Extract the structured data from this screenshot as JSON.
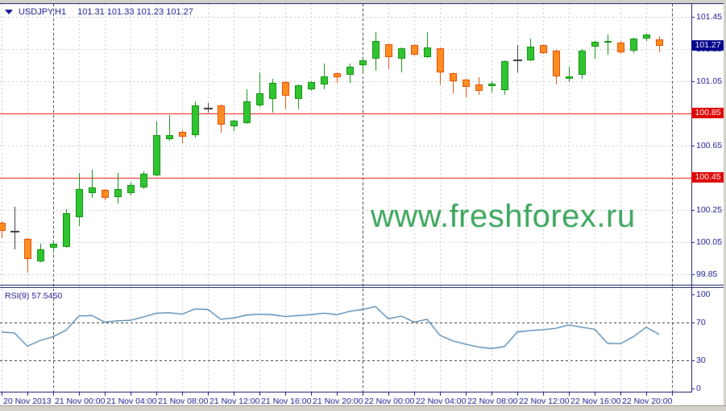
{
  "window": {
    "symbol": "USDJPY,H1",
    "ohlc": "101.31 101.33 101.23 101.27"
  },
  "watermark": "www.freshforex.ru",
  "colors": {
    "bull_fill": "#31c431",
    "bull_border": "#0a8f0a",
    "bear_fill": "#ff8c1e",
    "bear_border": "#e04a00",
    "doji": "#3a3a3a",
    "rsi_line": "#4a82ad",
    "hline": "#f51515",
    "badge_red": "#dd0404",
    "badge_blue": "#00008b",
    "axis_text": "#14148c",
    "grid": "#cccccc",
    "day_separator": "#404040"
  },
  "chart_data": {
    "type": "candlestick",
    "symbol": "USDJPY",
    "timeframe": "H1",
    "last_ohlc": {
      "open": 101.31,
      "high": 101.33,
      "low": 101.23,
      "close": 101.27
    },
    "price_axis": {
      "plain_labels": [
        101.45,
        101.25,
        101.05,
        100.65,
        100.25,
        100.05,
        99.85
      ],
      "grid_levels": [
        101.45,
        101.25,
        101.05,
        100.85,
        100.65,
        100.45,
        100.25,
        100.05,
        99.85
      ],
      "current_price_badge": "101.27",
      "current_price": 101.27
    },
    "hlines": [
      {
        "price": 100.85,
        "badge": "100.85"
      },
      {
        "price": 100.45,
        "badge": "100.45"
      }
    ],
    "time_axis": {
      "labels": [
        {
          "i": 0,
          "text": "20 Nov 2013"
        },
        {
          "i": 4,
          "text": "21 Nov 00:00"
        },
        {
          "i": 8,
          "text": "21 Nov 04:00"
        },
        {
          "i": 12,
          "text": "21 Nov 08:00"
        },
        {
          "i": 16,
          "text": "21 Nov 12:00"
        },
        {
          "i": 20,
          "text": "21 Nov 16:00"
        },
        {
          "i": 24,
          "text": "21 Nov 20:00"
        },
        {
          "i": 28,
          "text": "22 Nov 00:00"
        },
        {
          "i": 32,
          "text": "22 Nov 04:00"
        },
        {
          "i": 36,
          "text": "22 Nov 08:00"
        },
        {
          "i": 40,
          "text": "22 Nov 12:00"
        },
        {
          "i": 44,
          "text": "22 Nov 16:00"
        },
        {
          "i": 48,
          "text": "22 Nov 20:00"
        }
      ],
      "day_separator_indices": [
        4,
        28,
        52
      ]
    },
    "candles": [
      {
        "o": 100.17,
        "h": 100.18,
        "l": 100.075,
        "c": 100.12
      },
      {
        "o": 100.125,
        "h": 100.27,
        "l": 100.005,
        "c": 100.115,
        "dark": true
      },
      {
        "o": 100.07,
        "h": 100.075,
        "l": 99.86,
        "c": 99.945
      },
      {
        "o": 99.93,
        "h": 100.04,
        "l": 99.925,
        "c": 100.005
      },
      {
        "o": 100.015,
        "h": 100.045,
        "l": 99.99,
        "c": 100.04
      },
      {
        "o": 100.02,
        "h": 100.255,
        "l": 100.015,
        "c": 100.23
      },
      {
        "o": 100.205,
        "h": 100.48,
        "l": 100.15,
        "c": 100.38
      },
      {
        "o": 100.355,
        "h": 100.5,
        "l": 100.325,
        "c": 100.39
      },
      {
        "o": 100.375,
        "h": 100.38,
        "l": 100.31,
        "c": 100.325
      },
      {
        "o": 100.33,
        "h": 100.48,
        "l": 100.29,
        "c": 100.38
      },
      {
        "o": 100.355,
        "h": 100.42,
        "l": 100.34,
        "c": 100.405
      },
      {
        "o": 100.39,
        "h": 100.49,
        "l": 100.38,
        "c": 100.475
      },
      {
        "o": 100.465,
        "h": 100.8,
        "l": 100.46,
        "c": 100.715
      },
      {
        "o": 100.69,
        "h": 100.84,
        "l": 100.68,
        "c": 100.715
      },
      {
        "o": 100.735,
        "h": 100.745,
        "l": 100.665,
        "c": 100.705
      },
      {
        "o": 100.715,
        "h": 100.925,
        "l": 100.7,
        "c": 100.9
      },
      {
        "o": 100.89,
        "h": 100.915,
        "l": 100.855,
        "c": 100.88,
        "dark": true
      },
      {
        "o": 100.9,
        "h": 100.905,
        "l": 100.73,
        "c": 100.78
      },
      {
        "o": 100.77,
        "h": 100.81,
        "l": 100.74,
        "c": 100.805
      },
      {
        "o": 100.79,
        "h": 101.0,
        "l": 100.785,
        "c": 100.925
      },
      {
        "o": 100.9,
        "h": 101.105,
        "l": 100.89,
        "c": 100.975
      },
      {
        "o": 100.94,
        "h": 101.065,
        "l": 100.855,
        "c": 101.04
      },
      {
        "o": 101.045,
        "h": 101.05,
        "l": 100.88,
        "c": 100.96
      },
      {
        "o": 100.94,
        "h": 101.03,
        "l": 100.875,
        "c": 101.025
      },
      {
        "o": 101.0,
        "h": 101.05,
        "l": 100.99,
        "c": 101.045
      },
      {
        "o": 101.03,
        "h": 101.16,
        "l": 101.0,
        "c": 101.08
      },
      {
        "o": 101.1,
        "h": 101.105,
        "l": 101.04,
        "c": 101.075
      },
      {
        "o": 101.09,
        "h": 101.16,
        "l": 101.04,
        "c": 101.14
      },
      {
        "o": 101.15,
        "h": 101.19,
        "l": 101.1,
        "c": 101.18
      },
      {
        "o": 101.19,
        "h": 101.355,
        "l": 101.115,
        "c": 101.3
      },
      {
        "o": 101.28,
        "h": 101.285,
        "l": 101.125,
        "c": 101.2
      },
      {
        "o": 101.19,
        "h": 101.26,
        "l": 101.105,
        "c": 101.255
      },
      {
        "o": 101.275,
        "h": 101.28,
        "l": 101.21,
        "c": 101.215
      },
      {
        "o": 101.2,
        "h": 101.355,
        "l": 101.195,
        "c": 101.26
      },
      {
        "o": 101.255,
        "h": 101.26,
        "l": 101.03,
        "c": 101.105
      },
      {
        "o": 101.1,
        "h": 101.105,
        "l": 100.975,
        "c": 101.05
      },
      {
        "o": 101.06,
        "h": 101.065,
        "l": 100.95,
        "c": 101.015
      },
      {
        "o": 101.03,
        "h": 101.075,
        "l": 100.965,
        "c": 100.99
      },
      {
        "o": 101.02,
        "h": 101.05,
        "l": 100.98,
        "c": 101.035
      },
      {
        "o": 100.995,
        "h": 101.18,
        "l": 100.965,
        "c": 101.175
      },
      {
        "o": 101.185,
        "h": 101.275,
        "l": 101.105,
        "c": 101.19,
        "dark": true
      },
      {
        "o": 101.18,
        "h": 101.315,
        "l": 101.175,
        "c": 101.265
      },
      {
        "o": 101.275,
        "h": 101.28,
        "l": 101.22,
        "c": 101.225
      },
      {
        "o": 101.24,
        "h": 101.245,
        "l": 101.03,
        "c": 101.08
      },
      {
        "o": 101.065,
        "h": 101.14,
        "l": 101.045,
        "c": 101.08
      },
      {
        "o": 101.09,
        "h": 101.25,
        "l": 101.065,
        "c": 101.24
      },
      {
        "o": 101.265,
        "h": 101.3,
        "l": 101.19,
        "c": 101.295
      },
      {
        "o": 101.29,
        "h": 101.34,
        "l": 101.215,
        "c": 101.3
      },
      {
        "o": 101.29,
        "h": 101.3,
        "l": 101.22,
        "c": 101.23
      },
      {
        "o": 101.24,
        "h": 101.32,
        "l": 101.225,
        "c": 101.315
      },
      {
        "o": 101.315,
        "h": 101.345,
        "l": 101.3,
        "c": 101.34
      },
      {
        "o": 101.31,
        "h": 101.33,
        "l": 101.23,
        "c": 101.27
      }
    ],
    "rsi": {
      "label": "RSI(9) 57.5450",
      "period": 9,
      "current_value": 57.545,
      "axis_labels": [
        100,
        70,
        30,
        0
      ],
      "level_lines": [
        70,
        30
      ],
      "values": [
        60,
        59,
        45,
        51,
        55,
        62,
        77,
        77.5,
        70.5,
        72,
        72.5,
        76,
        80,
        80.5,
        79,
        84.5,
        84,
        73.5,
        75,
        78,
        79,
        78.5,
        76.5,
        77.5,
        78.5,
        80,
        78.5,
        82,
        84,
        87,
        74,
        77,
        70.5,
        73.5,
        56.5,
        50.5,
        47,
        44,
        42.5,
        44.5,
        60,
        61.5,
        62.5,
        64,
        67.5,
        65,
        63,
        48,
        47.5,
        55,
        65,
        57.5
      ]
    }
  }
}
